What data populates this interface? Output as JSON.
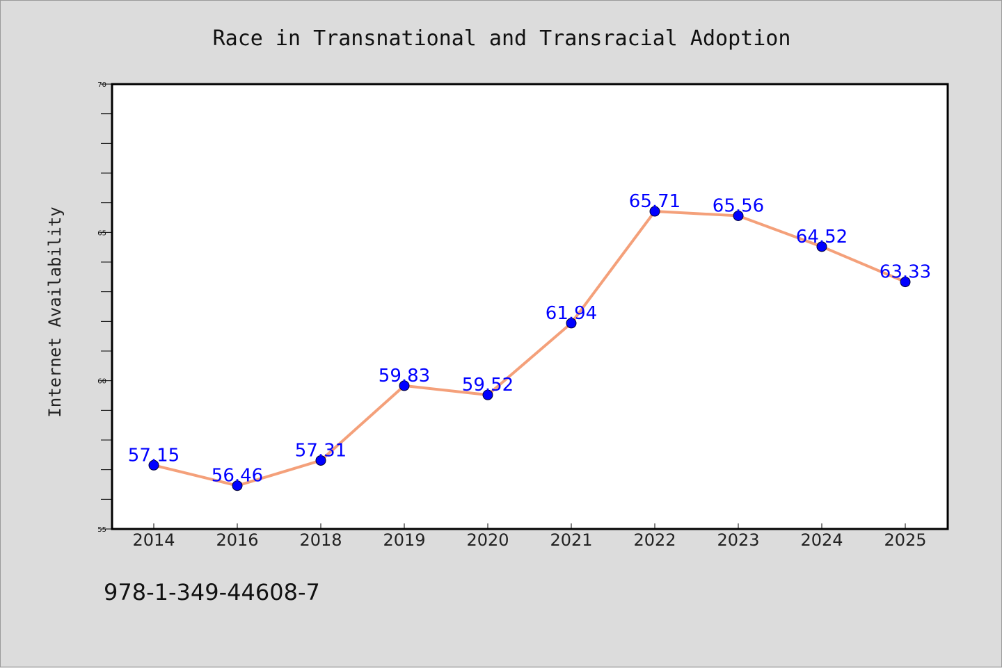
{
  "chart_data": {
    "type": "line",
    "title": "Race in Transnational and Transracial Adoption",
    "xlabel": "",
    "ylabel": "Internet Availability",
    "categories": [
      "2014",
      "2016",
      "2018",
      "2019",
      "2020",
      "2021",
      "2022",
      "2023",
      "2024",
      "2025"
    ],
    "series": [
      {
        "values": [
          57.15,
          56.46,
          57.31,
          59.83,
          59.52,
          61.94,
          65.71,
          65.56,
          64.52,
          63.33
        ],
        "data_labels": [
          "57.15",
          "56.46",
          "57.31",
          "59.83",
          "59.52",
          "61.94",
          "65.71",
          "65.56",
          "64.52",
          "63.33"
        ],
        "line_color": "#f4a07a",
        "marker_color": "#0000ff"
      }
    ],
    "ylim": [
      55,
      70
    ],
    "yticks": [
      "55",
      "60",
      "65",
      "70"
    ],
    "yminor_step": 1,
    "grid": false,
    "legend": "none"
  },
  "footer": {
    "isbn": "978-1-349-44608-7"
  }
}
